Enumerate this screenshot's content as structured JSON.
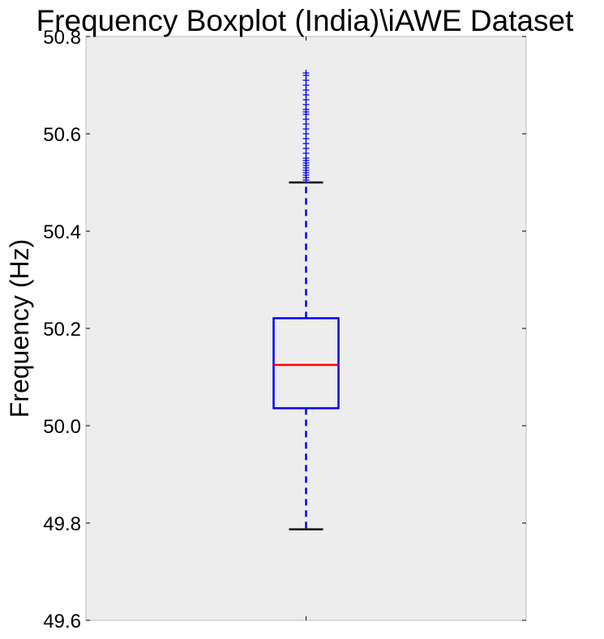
{
  "chart_data": {
    "type": "boxplot",
    "title": "Frequency Boxplot (India)\\iAWE Dataset",
    "xlabel": "",
    "ylabel": "Frequency (Hz)",
    "ylim": [
      49.6,
      50.8
    ],
    "yticks": [
      "49.6",
      "49.8",
      "50.0",
      "50.2",
      "50.4",
      "50.6",
      "50.8"
    ],
    "grid": false,
    "boxes": [
      {
        "whisker_low": 49.787,
        "q1": 50.036,
        "median": 50.125,
        "q3": 50.221,
        "whisker_high": 50.5,
        "outliers": [
          50.505,
          50.51,
          50.515,
          50.52,
          50.525,
          50.53,
          50.535,
          50.54,
          50.545,
          50.55,
          50.56,
          50.57,
          50.58,
          50.59,
          50.6,
          50.61,
          50.62,
          50.63,
          50.64,
          50.645,
          50.65,
          50.66,
          50.67,
          50.68,
          50.69,
          50.7,
          50.71,
          50.72,
          50.725
        ]
      }
    ],
    "colors": {
      "box": "#0000ff",
      "median": "#ff0000",
      "whisker": "#0000ff",
      "cap": "#000000",
      "outlier": "#0000ff",
      "plot_background": "#ededed",
      "frame": "#bfbfbf"
    }
  }
}
